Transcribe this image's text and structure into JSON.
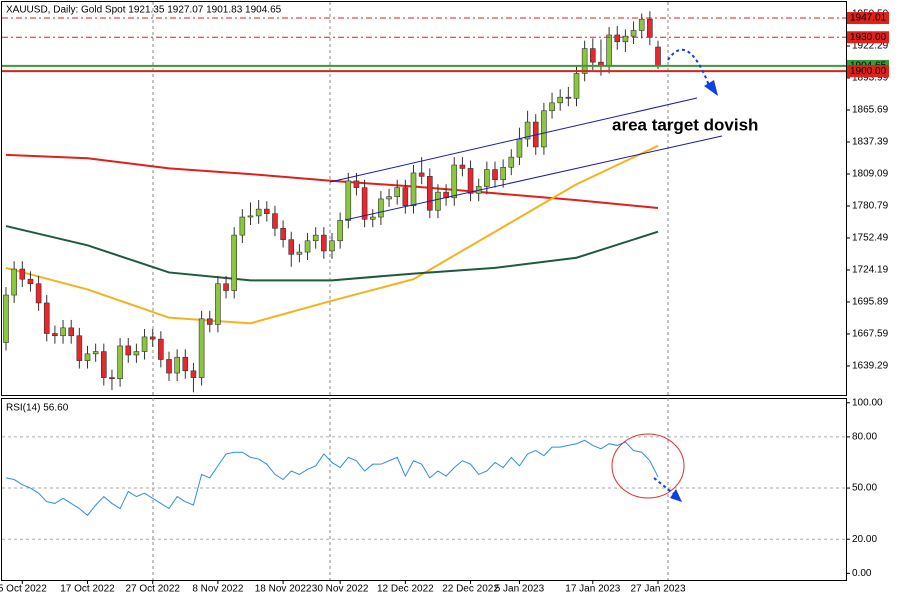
{
  "chart_data": [
    {
      "type": "candlestick",
      "title": "XAUUSD, Daily:  Gold Spot  1921.35 1927.07 1901.83 1904.65",
      "categories": [
        null,
        null,
        "5 Oct 2022",
        null,
        null,
        null,
        null,
        null,
        null,
        null,
        "17 Oct 2022",
        null,
        null,
        null,
        null,
        null,
        null,
        null,
        "27 Oct 2022",
        null,
        null,
        null,
        null,
        null,
        null,
        null,
        "8 Nov 2022",
        null,
        null,
        null,
        null,
        null,
        null,
        null,
        "18 Nov 2022",
        null,
        null,
        null,
        null,
        null,
        null,
        "30 Nov 2022",
        null,
        null,
        null,
        null,
        null,
        null,
        null,
        "12 Dec 2022",
        null,
        null,
        null,
        null,
        null,
        null,
        null,
        "22 Dec 2022",
        null,
        null,
        null,
        null,
        null,
        "5 Jan 2023",
        null,
        null,
        null,
        null,
        null,
        null,
        null,
        null,
        "17 Jan 2023",
        null,
        null,
        null,
        null,
        null,
        null,
        null,
        "27 Jan 2023"
      ],
      "open": [
        1660,
        1702,
        1725,
        1716,
        1712,
        1695,
        1668,
        1666,
        1673,
        1666,
        1644,
        1650,
        1652,
        1629,
        1628,
        1657,
        1649,
        1652,
        1665,
        1663,
        1645,
        1633,
        1647,
        1635,
        1629,
        1681,
        1676,
        1712,
        1706,
        1755,
        1771,
        1772,
        1778,
        1774,
        1761,
        1751,
        1738,
        1740,
        1750,
        1755,
        1741,
        1750,
        1768,
        1803,
        1797,
        1769,
        1771,
        1787,
        1789,
        1797,
        1781,
        1810,
        1807,
        1777,
        1793,
        1788,
        1817,
        1814,
        1792,
        1798,
        1813,
        1804,
        1815,
        1824,
        1840,
        1855,
        1833,
        1865,
        1872,
        1877,
        1876,
        1898,
        1920,
        1908,
        1905,
        1932,
        1926,
        1931,
        1936,
        1946,
        1921.35
      ],
      "high": [
        1709,
        1732,
        1732,
        1723,
        1719,
        1702,
        1675,
        1680,
        1680,
        1673,
        1657,
        1659,
        1659,
        1636,
        1664,
        1664,
        1659,
        1672,
        1672,
        1670,
        1652,
        1654,
        1654,
        1642,
        1688,
        1688,
        1719,
        1719,
        1762,
        1778,
        1784,
        1786,
        1785,
        1781,
        1768,
        1758,
        1747,
        1757,
        1762,
        1762,
        1757,
        1775,
        1810,
        1810,
        1804,
        1778,
        1794,
        1796,
        1804,
        1804,
        1817,
        1824,
        1814,
        1800,
        1800,
        1824,
        1824,
        1821,
        1805,
        1820,
        1820,
        1822,
        1831,
        1850,
        1865,
        1862,
        1872,
        1881,
        1884,
        1886,
        1905,
        1927,
        1929,
        1928,
        1939,
        1940,
        1937,
        1944,
        1951,
        1953,
        1927.07
      ],
      "low": [
        1653,
        1695,
        1709,
        1705,
        1688,
        1661,
        1659,
        1659,
        1659,
        1637,
        1637,
        1643,
        1622,
        1618,
        1621,
        1642,
        1642,
        1645,
        1656,
        1638,
        1626,
        1626,
        1628,
        1616,
        1622,
        1669,
        1669,
        1699,
        1699,
        1748,
        1764,
        1765,
        1767,
        1754,
        1744,
        1727,
        1731,
        1733,
        1743,
        1734,
        1734,
        1743,
        1761,
        1790,
        1762,
        1762,
        1764,
        1780,
        1782,
        1774,
        1774,
        1800,
        1770,
        1770,
        1781,
        1781,
        1807,
        1785,
        1785,
        1791,
        1797,
        1797,
        1808,
        1817,
        1833,
        1826,
        1826,
        1858,
        1865,
        1869,
        1869,
        1891,
        1901,
        1896,
        1898,
        1919,
        1917,
        1924,
        1929,
        1923,
        1901.83
      ],
      "close": [
        1702,
        1725,
        1716,
        1712,
        1695,
        1668,
        1666,
        1673,
        1666,
        1644,
        1650,
        1652,
        1629,
        1628,
        1657,
        1649,
        1652,
        1665,
        1663,
        1645,
        1633,
        1647,
        1635,
        1629,
        1681,
        1676,
        1712,
        1706,
        1755,
        1771,
        1772,
        1778,
        1774,
        1761,
        1751,
        1738,
        1740,
        1750,
        1755,
        1741,
        1750,
        1768,
        1803,
        1797,
        1769,
        1771,
        1787,
        1789,
        1797,
        1781,
        1810,
        1807,
        1777,
        1793,
        1788,
        1817,
        1814,
        1792,
        1798,
        1813,
        1804,
        1815,
        1824,
        1840,
        1855,
        1833,
        1865,
        1872,
        1877,
        1876,
        1898,
        1920,
        1908,
        1905,
        1932,
        1926,
        1931,
        1936,
        1946,
        1930,
        1904.65
      ],
      "up_color": "#8cc63f",
      "down_color": "#e8262d",
      "ylim": [
        1613.6,
        1960.3
      ],
      "yticks": [
        {
          "value": 1950.5,
          "label": "1950.50"
        },
        1922.29,
        1893.99,
        1865.69,
        1837.39,
        1809.09,
        1780.79,
        1752.49,
        1724.19,
        1695.89,
        1667.59,
        1639.29
      ],
      "overlays": [
        {
          "type": "line",
          "color": "#e0201a",
          "x": [
            0,
            10,
            20,
            30,
            40,
            50,
            60,
            70,
            80
          ],
          "values": [
            1826,
            1823,
            1814,
            1809,
            1803,
            1798,
            1792,
            1786,
            1779
          ]
        },
        {
          "type": "line",
          "color": "#f5b21d",
          "x": [
            0,
            10,
            20,
            30,
            40,
            50,
            60,
            70,
            80
          ],
          "values": [
            1726,
            1707,
            1682,
            1677,
            1697,
            1716,
            1758,
            1800,
            1834
          ]
        },
        {
          "type": "line",
          "color": "#1f5a3e",
          "x": [
            0,
            10,
            20,
            30,
            40,
            50,
            60,
            70,
            80
          ],
          "values": [
            1763,
            1746,
            1722,
            1715,
            1715,
            1721,
            1726,
            1735,
            1758
          ]
        }
      ],
      "levels": [
        {
          "value": 1947.01,
          "label": "1947.01",
          "color": "#e0201a",
          "style": "dashdot"
        },
        {
          "value": 1930,
          "label": "1930.00",
          "color": "#e0201a",
          "style": "dashdot"
        },
        {
          "value": 1904.65,
          "label": "1904.65",
          "color": "#3a9a3a",
          "style": "solid"
        },
        {
          "value": 1900,
          "label": "1900.00",
          "color": "#e0201a",
          "style": "solid"
        }
      ],
      "annotations": [
        {
          "text": "area target dovish",
          "color": "#f26a6a"
        }
      ]
    },
    {
      "type": "line",
      "title": "RSI(14) 56.60",
      "color": "#2f8de4",
      "values": [
        56,
        55,
        52,
        50,
        47,
        42,
        41,
        44,
        41,
        38,
        34,
        40,
        45,
        41,
        38,
        48,
        45,
        47,
        44,
        41,
        38,
        45,
        42,
        40,
        58,
        56,
        63,
        70,
        71,
        71,
        68,
        67,
        64,
        58,
        55,
        60,
        58,
        61,
        63,
        70,
        65,
        62,
        68,
        66,
        60,
        64,
        64,
        66,
        68,
        57,
        66,
        64,
        56,
        60,
        57,
        62,
        66,
        64,
        58,
        60,
        65,
        62,
        68,
        63,
        70,
        72,
        69,
        74,
        74,
        75,
        76,
        78,
        75,
        73,
        76,
        75,
        77,
        72,
        71,
        66,
        56.6
      ],
      "ylim": [
        -3.9,
        102.8
      ],
      "yticks": [
        {
          "value": 100,
          "label": "100.00"
        },
        {
          "value": 80,
          "label": "80.00"
        },
        {
          "value": 50,
          "label": "50.00"
        },
        {
          "value": 20,
          "label": "20.00"
        },
        {
          "value": 0,
          "label": "0.00"
        }
      ],
      "grid": true
    }
  ]
}
